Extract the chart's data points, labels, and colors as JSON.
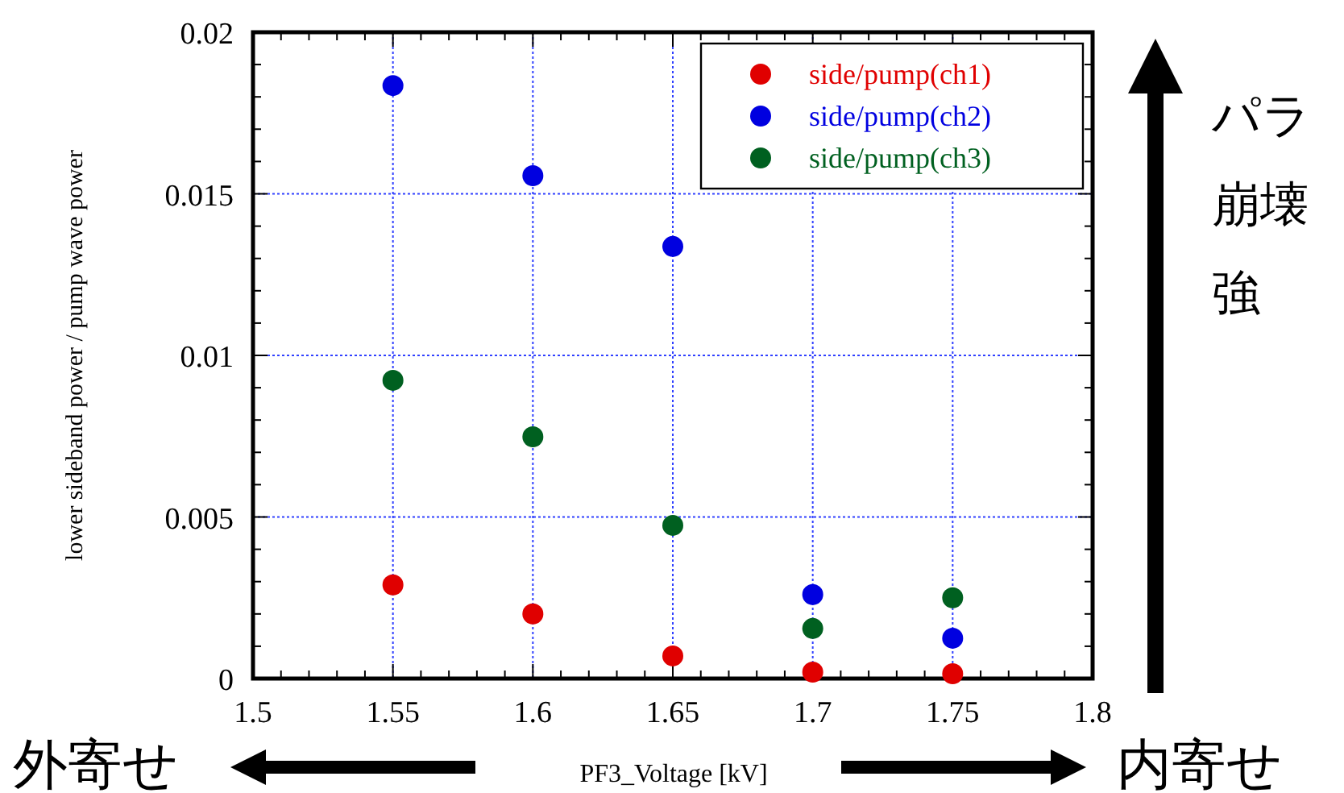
{
  "chart_data": {
    "type": "scatter",
    "xlabel": "PF3_Voltage [kV]",
    "ylabel": "lower sideband power / pump wave power",
    "x": [
      1.55,
      1.6,
      1.65,
      1.7,
      1.75
    ],
    "series": [
      {
        "name": "side/pump(ch1)",
        "color": "#e00000",
        "values": [
          0.0029,
          0.002,
          0.0007,
          0.0002,
          0.00015
        ]
      },
      {
        "name": "side/pump(ch2)",
        "color": "#0000e0",
        "values": [
          0.01835,
          0.01556,
          0.01337,
          0.0026,
          0.00125
        ]
      },
      {
        "name": "side/pump(ch3)",
        "color": "#006020",
        "values": [
          0.00923,
          0.00748,
          0.00474,
          0.00155,
          0.0025
        ]
      }
    ],
    "xlim": [
      1.5,
      1.8
    ],
    "xticks": [
      1.5,
      1.55,
      1.6,
      1.65,
      1.7,
      1.75,
      1.8
    ],
    "ylim": [
      0,
      0.02
    ],
    "yticks": [
      0,
      0.005,
      0.01,
      0.015,
      0.02
    ],
    "grid": true,
    "legend": "top right",
    "marker": "circle",
    "annotations": [
      "外寄せ",
      "内寄せ",
      "パラ",
      "崩壊",
      "強"
    ]
  }
}
